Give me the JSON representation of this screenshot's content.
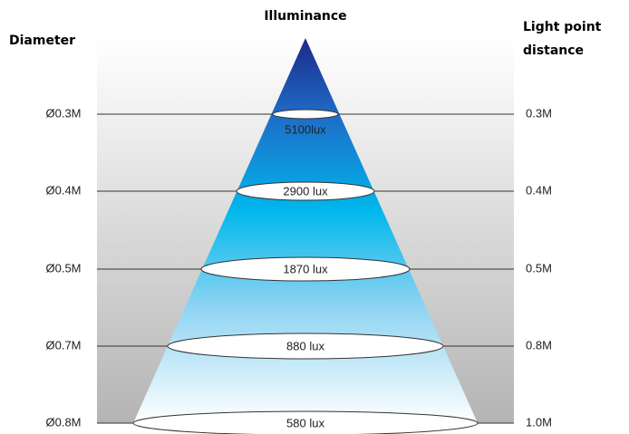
{
  "header": {
    "title": "Illuminance",
    "left": "Diameter",
    "right": [
      "Light point",
      "distance"
    ]
  },
  "rows": [
    {
      "diameter": "Ø0.3M",
      "illuminance": "5100lux",
      "distance": "0.3M"
    },
    {
      "diameter": "Ø0.4M",
      "illuminance": "2900 lux",
      "distance": "0.4M"
    },
    {
      "diameter": "Ø0.5M",
      "illuminance": "1870 lux",
      "distance": "0.5M"
    },
    {
      "diameter": "Ø0.7M",
      "illuminance": "880 lux",
      "distance": "0.8M"
    },
    {
      "diameter": "Ø0.8M",
      "illuminance": "580 lux",
      "distance": "1.0M"
    }
  ]
}
